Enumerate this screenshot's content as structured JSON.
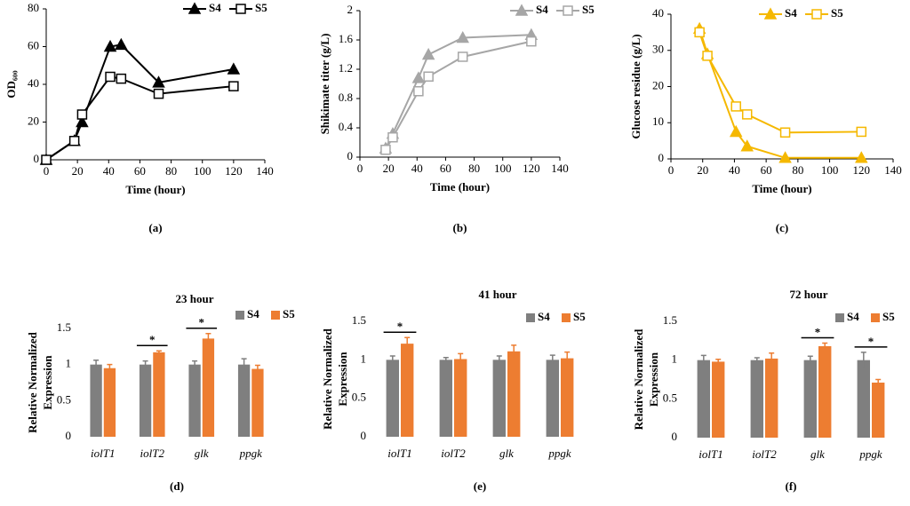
{
  "chart_data": [
    {
      "type": "line",
      "panel_label": "(a)",
      "xlabel": "Time (hour)",
      "ylabel": "OD₆₀₀",
      "x": [
        0,
        18,
        23,
        41,
        48,
        72,
        120
      ],
      "series": [
        {
          "name": "S4",
          "color": "#000000",
          "marker": "filled-triangle",
          "values": [
            0,
            10,
            20,
            60,
            61,
            41,
            48
          ]
        },
        {
          "name": "S5",
          "color": "#000000",
          "marker": "open-square",
          "values": [
            0,
            10,
            24,
            44,
            43,
            35,
            39
          ]
        }
      ],
      "xlim": [
        0,
        140
      ],
      "xticks": [
        0,
        20,
        40,
        60,
        80,
        100,
        120,
        140
      ],
      "ylim": [
        0,
        80
      ],
      "yticks": [
        0,
        20,
        40,
        60,
        80
      ],
      "legend": "upper right"
    },
    {
      "type": "line",
      "panel_label": "(b)",
      "xlabel": "Time (hour)",
      "ylabel": "Shikimate titer (g/L)",
      "x": [
        18,
        23,
        41,
        48,
        72,
        120
      ],
      "series": [
        {
          "name": "S4",
          "color": "#a6a6a6",
          "marker": "filled-triangle",
          "values": [
            0.12,
            0.32,
            1.08,
            1.4,
            1.63,
            1.67
          ]
        },
        {
          "name": "S5",
          "color": "#a6a6a6",
          "marker": "open-square",
          "values": [
            0.1,
            0.27,
            0.9,
            1.1,
            1.37,
            1.58
          ]
        }
      ],
      "xlim": [
        0,
        140
      ],
      "xticks": [
        0,
        20,
        40,
        60,
        80,
        100,
        120,
        140
      ],
      "ylim": [
        0,
        2
      ],
      "yticks": [
        0,
        0.4,
        0.8,
        1.2,
        1.6,
        2
      ],
      "legend": "upper right"
    },
    {
      "type": "line",
      "panel_label": "(c)",
      "xlabel": "Time (hour)",
      "ylabel": "Glucose residue (g/L)",
      "x": [
        18,
        23,
        41,
        48,
        72,
        120
      ],
      "series": [
        {
          "name": "S4",
          "color": "#f5b800",
          "marker": "filled-triangle",
          "values": [
            36,
            29,
            7.5,
            3.5,
            0.3,
            0.3
          ]
        },
        {
          "name": "S5",
          "color": "#f5b800",
          "marker": "open-square",
          "values": [
            35,
            28.5,
            14.5,
            12.3,
            7.3,
            7.5
          ]
        }
      ],
      "xlim": [
        0,
        140
      ],
      "xticks": [
        0,
        20,
        40,
        60,
        80,
        100,
        120,
        140
      ],
      "ylim": [
        0,
        40
      ],
      "yticks": [
        0,
        10,
        20,
        30,
        40
      ],
      "legend": "upper right"
    },
    {
      "type": "bar",
      "panel_label": "(d)",
      "title": "23 hour",
      "ylabel": [
        "Relative Normalized",
        "Expression"
      ],
      "categories": [
        "iolT1",
        "iolT2",
        "glk",
        "ppgk"
      ],
      "series": [
        {
          "name": "S4",
          "color": "#7f7f7f",
          "values": [
            1,
            1,
            1,
            1
          ],
          "errors": [
            0.06,
            0.05,
            0.05,
            0.08
          ]
        },
        {
          "name": "S5",
          "color": "#ed7d31",
          "values": [
            0.95,
            1.17,
            1.36,
            0.94
          ],
          "errors": [
            0.05,
            0.02,
            0.07,
            0.05
          ]
        }
      ],
      "annotations": [
        {
          "text": "*",
          "category": "iolT2"
        },
        {
          "text": "*",
          "category": "glk"
        }
      ],
      "ylim": [
        0,
        1.5
      ],
      "yticks": [
        0,
        0.5,
        1,
        1.5
      ],
      "legend": "upper right"
    },
    {
      "type": "bar",
      "panel_label": "(e)",
      "title": "41 hour",
      "ylabel": [
        "Relative Normalized",
        "Expression"
      ],
      "categories": [
        "iolT1",
        "iolT2",
        "glk",
        "ppgk"
      ],
      "series": [
        {
          "name": "S4",
          "color": "#7f7f7f",
          "values": [
            1,
            1,
            1,
            1
          ],
          "errors": [
            0.05,
            0.03,
            0.05,
            0.06
          ]
        },
        {
          "name": "S5",
          "color": "#ed7d31",
          "values": [
            1.21,
            1.01,
            1.11,
            1.02
          ],
          "errors": [
            0.08,
            0.07,
            0.08,
            0.08
          ]
        }
      ],
      "annotations": [
        {
          "text": "*",
          "category": "iolT1"
        }
      ],
      "ylim": [
        0,
        1.5
      ],
      "yticks": [
        0,
        0.5,
        1,
        1.5
      ],
      "legend": "upper right"
    },
    {
      "type": "bar",
      "panel_label": "(f)",
      "title": "72 hour",
      "ylabel": [
        "Relative Normalized",
        "Expression"
      ],
      "categories": [
        "iolT1",
        "iolT2",
        "glk",
        "ppgk"
      ],
      "series": [
        {
          "name": "S4",
          "color": "#7f7f7f",
          "values": [
            1,
            1,
            1,
            1
          ],
          "errors": [
            0.06,
            0.03,
            0.05,
            0.1
          ]
        },
        {
          "name": "S5",
          "color": "#ed7d31",
          "values": [
            0.98,
            1.02,
            1.18,
            0.71
          ],
          "errors": [
            0.03,
            0.07,
            0.04,
            0.04
          ]
        }
      ],
      "annotations": [
        {
          "text": "*",
          "category": "glk"
        },
        {
          "text": "*",
          "category": "ppgk"
        }
      ],
      "ylim": [
        0,
        1.5
      ],
      "yticks": [
        0,
        0.5,
        1,
        1.5
      ],
      "legend": "upper right"
    }
  ]
}
